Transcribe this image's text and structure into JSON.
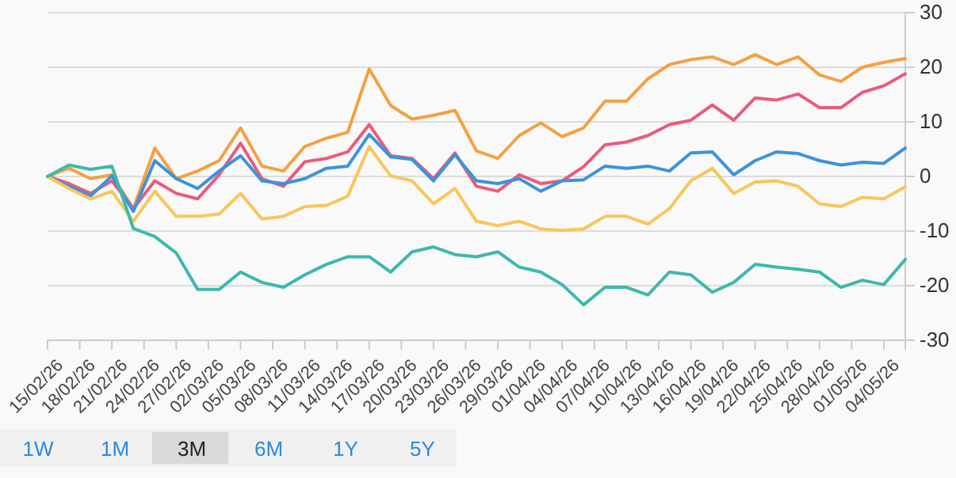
{
  "chart_data": {
    "type": "line",
    "x": [
      "--02-15",
      "--02-17",
      "--02-19",
      "--02-21",
      "--02-23",
      "--02-25",
      "--02-27",
      "--03-01",
      "--03-03",
      "--03-05",
      "--03-07",
      "--03-09",
      "--03-11",
      "--03-13",
      "--03-15",
      "--03-17",
      "--03-19",
      "--03-21",
      "--03-23",
      "--03-25",
      "--03-27",
      "--03-29",
      "--03-31",
      "--04-02",
      "--04-04",
      "--04-06",
      "--04-08",
      "--04-10",
      "--04-12",
      "--04-14",
      "--04-16",
      "--04-18",
      "--04-20",
      "--04-22",
      "--04-24",
      "--04-26",
      "--04-28",
      "--04-30",
      "--05-02",
      "--05-04",
      "--05-06"
    ],
    "series": [
      {
        "color": "#f5a040",
        "values": [
          0,
          1.5,
          -0.4,
          0.3,
          -5.9,
          5.2,
          -0.4,
          1,
          2.9,
          8.9,
          1.9,
          1,
          5.5,
          7,
          8.1,
          19.7,
          13,
          10.5,
          11.2,
          12.1,
          4.7,
          3.3,
          7.5,
          9.8,
          7.3,
          8.9,
          13.8,
          13.8,
          17.9,
          20.5,
          21.4,
          21.9,
          20.5,
          22.3,
          20.5,
          21.9,
          18.6,
          17.4,
          20,
          20.9,
          21.6
        ]
      },
      {
        "color": "#eb5a7c",
        "values": [
          0,
          -1.3,
          -3.1,
          -0.8,
          -5.9,
          -0.8,
          -3.1,
          -4.1,
          0.3,
          6.1,
          -0.4,
          -1.8,
          2.7,
          3.3,
          4.5,
          9.5,
          3.8,
          3.3,
          -0.4,
          4.3,
          -1.8,
          -2.7,
          0.3,
          -1.3,
          -0.8,
          1.8,
          5.8,
          6.3,
          7.5,
          9.5,
          10.3,
          13.1,
          10.3,
          14.4,
          14,
          15.1,
          12.6,
          12.6,
          15.4,
          16.6,
          18.8
        ]
      },
      {
        "color": "#3b93dd",
        "values": [
          0,
          -1.8,
          -3.6,
          0.1,
          -6.4,
          2.9,
          -0.4,
          -2.2,
          1,
          3.8,
          -0.8,
          -1.3,
          -0.4,
          1.5,
          1.9,
          7.7,
          3.6,
          3.1,
          -0.8,
          4,
          -0.8,
          -1.3,
          -0.4,
          -2.7,
          -0.8,
          -0.6,
          1.9,
          1.5,
          1.9,
          1,
          4.3,
          4.5,
          0.3,
          2.9,
          4.5,
          4.2,
          2.9,
          2.1,
          2.6,
          2.4,
          5.2
        ]
      },
      {
        "color": "#f9c65a",
        "values": [
          0,
          -2.2,
          -4.1,
          -2.7,
          -8.2,
          -2.7,
          -7.3,
          -7.3,
          -6.9,
          -3.1,
          -7.8,
          -7.3,
          -5.5,
          -5.3,
          -3.6,
          5.5,
          0.1,
          -0.8,
          -5,
          -2.2,
          -8.2,
          -9,
          -8.2,
          -9.6,
          -9.9,
          -9.6,
          -7.3,
          -7.3,
          -8.7,
          -5.9,
          -0.8,
          1.5,
          -3.1,
          -1,
          -0.8,
          -1.8,
          -5,
          -5.5,
          -3.8,
          -4.1,
          -1.9
        ]
      },
      {
        "color": "#3db8ae",
        "values": [
          0,
          2.1,
          1.3,
          1.9,
          -9.5,
          -11,
          -14,
          -20.7,
          -20.7,
          -17.5,
          -19.4,
          -20.3,
          -18,
          -16.1,
          -14.7,
          -14.7,
          -17.5,
          -13.8,
          -12.9,
          -14.3,
          -14.7,
          -13.8,
          -16.6,
          -17.5,
          -19.8,
          -23.5,
          -20.3,
          -20.3,
          -21.7,
          -17.5,
          -18,
          -21.2,
          -19.4,
          -16.1,
          -16.6,
          -17,
          -17.5,
          -20.3,
          -19,
          -19.8,
          -15.2
        ]
      }
    ],
    "xlim": [
      "--02-15",
      "--05-06"
    ],
    "xticks": [
      {
        "value": "--02-15",
        "label": "15/02/26"
      },
      {
        "value": "--02-18",
        "label": "18/02/26"
      },
      {
        "value": "--02-21",
        "label": "21/02/26"
      },
      {
        "value": "--02-24",
        "label": "24/02/26"
      },
      {
        "value": "--02-27",
        "label": "27/02/26"
      },
      {
        "value": "--03-02",
        "label": "02/03/26"
      },
      {
        "value": "--03-05",
        "label": "05/03/26"
      },
      {
        "value": "--03-08",
        "label": "08/03/26"
      },
      {
        "value": "--03-11",
        "label": "11/03/26"
      },
      {
        "value": "--03-14",
        "label": "14/03/26"
      },
      {
        "value": "--03-17",
        "label": "17/03/26"
      },
      {
        "value": "--03-20",
        "label": "20/03/26"
      },
      {
        "value": "--03-23",
        "label": "23/03/26"
      },
      {
        "value": "--03-26",
        "label": "26/03/26"
      },
      {
        "value": "--03-29",
        "label": "29/03/26"
      },
      {
        "value": "--04-01",
        "label": "01/04/26"
      },
      {
        "value": "--04-04",
        "label": "04/04/26"
      },
      {
        "value": "--04-07",
        "label": "07/04/26"
      },
      {
        "value": "--04-10",
        "label": "10/04/26"
      },
      {
        "value": "--04-13",
        "label": "13/04/26"
      },
      {
        "value": "--04-16",
        "label": "16/04/26"
      },
      {
        "value": "--04-19",
        "label": "19/04/26"
      },
      {
        "value": "--04-22",
        "label": "22/04/26"
      },
      {
        "value": "--04-25",
        "label": "25/04/26"
      },
      {
        "value": "--04-28",
        "label": "28/04/26"
      },
      {
        "value": "--05-01",
        "label": "01/05/26"
      },
      {
        "value": "--05-04",
        "label": "04/05/26"
      }
    ],
    "ylim": [
      -30,
      30
    ],
    "yticks": [
      -30,
      -20,
      -10,
      0,
      10,
      20,
      30
    ],
    "grid": "y",
    "marker": "none",
    "line_style": "solid",
    "annotations": [
      "1W",
      "1M",
      "3M",
      "6M",
      "1Y",
      "5Y"
    ]
  }
}
